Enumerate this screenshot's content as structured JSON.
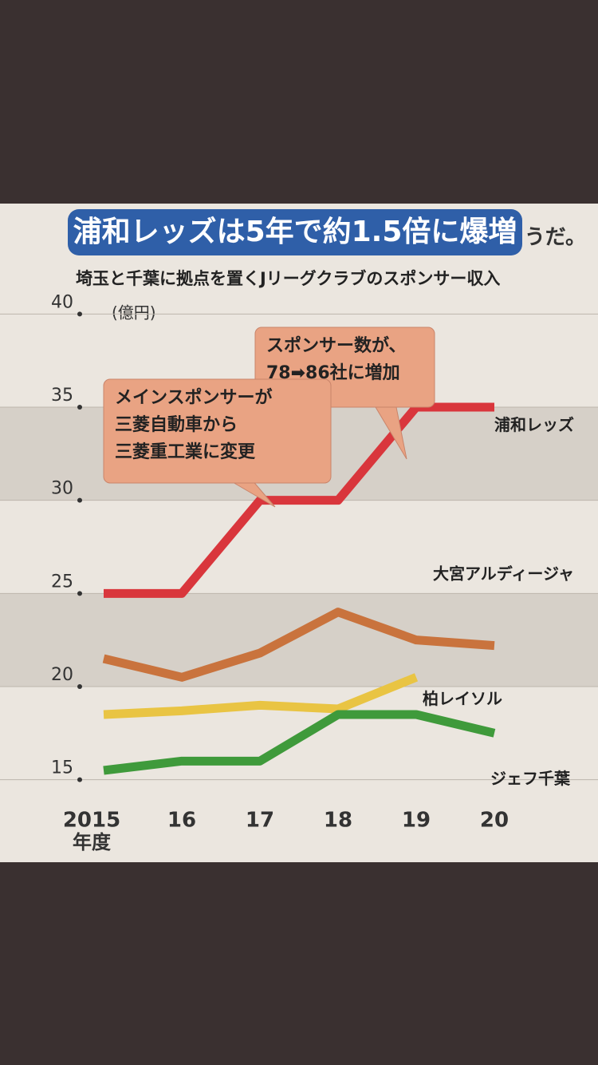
{
  "background_text": "続きそうだ。",
  "chart_data": {
    "type": "line",
    "title": "浦和レッズは5年で約1.5倍に爆増",
    "subtitle": "埼玉と千葉に拠点を置くJリーグクラブのスポンサー収入",
    "y_unit": "(億円)",
    "x_label": "年度",
    "categories": [
      "2015",
      "16",
      "17",
      "18",
      "19",
      "20"
    ],
    "ylim": [
      14,
      41
    ],
    "yticks": [
      15,
      20,
      25,
      30,
      35,
      40
    ],
    "series": [
      {
        "name": "浦和レッズ",
        "color": "#d9363c",
        "values": [
          25,
          25,
          30,
          30,
          35,
          35
        ]
      },
      {
        "name": "大宮アルディージャ",
        "color": "#c9733d",
        "values": [
          21.5,
          20.5,
          21.8,
          24,
          22.5,
          22.2
        ]
      },
      {
        "name": "柏レイソル",
        "color": "#e9c443",
        "values": [
          18.5,
          18.7,
          19,
          18.8,
          20.5,
          null
        ]
      },
      {
        "name": "ジェフ千葉",
        "color": "#3f9a3b",
        "values": [
          15.5,
          16,
          16,
          18.5,
          18.5,
          17.5
        ]
      }
    ],
    "annotations": [
      {
        "lines": [
          "スポンサー数が、",
          "78➡86社に増加"
        ]
      },
      {
        "lines": [
          "メインスポンサーが",
          "三菱自動車から",
          "三菱重工業に変更"
        ]
      }
    ]
  }
}
